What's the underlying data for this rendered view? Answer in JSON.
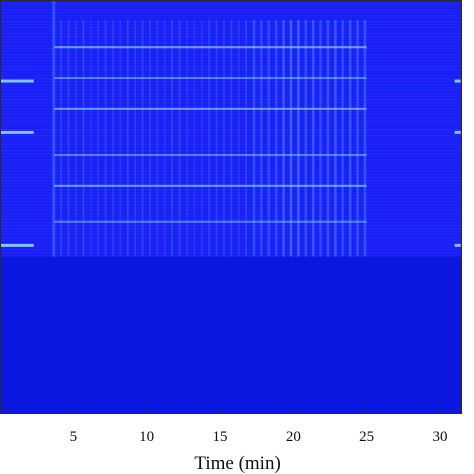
{
  "chart_data": {
    "type": "heatmap",
    "title": "",
    "xlabel": "Time (min)",
    "ylabel": "",
    "xlim": [
      0,
      31.5
    ],
    "x_ticks": [
      5,
      10,
      15,
      20,
      25,
      30
    ],
    "x_tick_labels": [
      "5",
      "10",
      "15",
      "20",
      "25",
      "30"
    ],
    "colormap": [
      "#0a18e0",
      "#1a3cff",
      "#3e7cff",
      "#7ec8ff"
    ],
    "background_color": "#1c1cf5",
    "features": {
      "signal_start_min": 3.7,
      "signal_end_min": 25.0,
      "dense_vertical_bands_start_min": 17.0,
      "horizontal_lines_outside_signal": 3,
      "upper_region_fraction": 0.62
    }
  }
}
